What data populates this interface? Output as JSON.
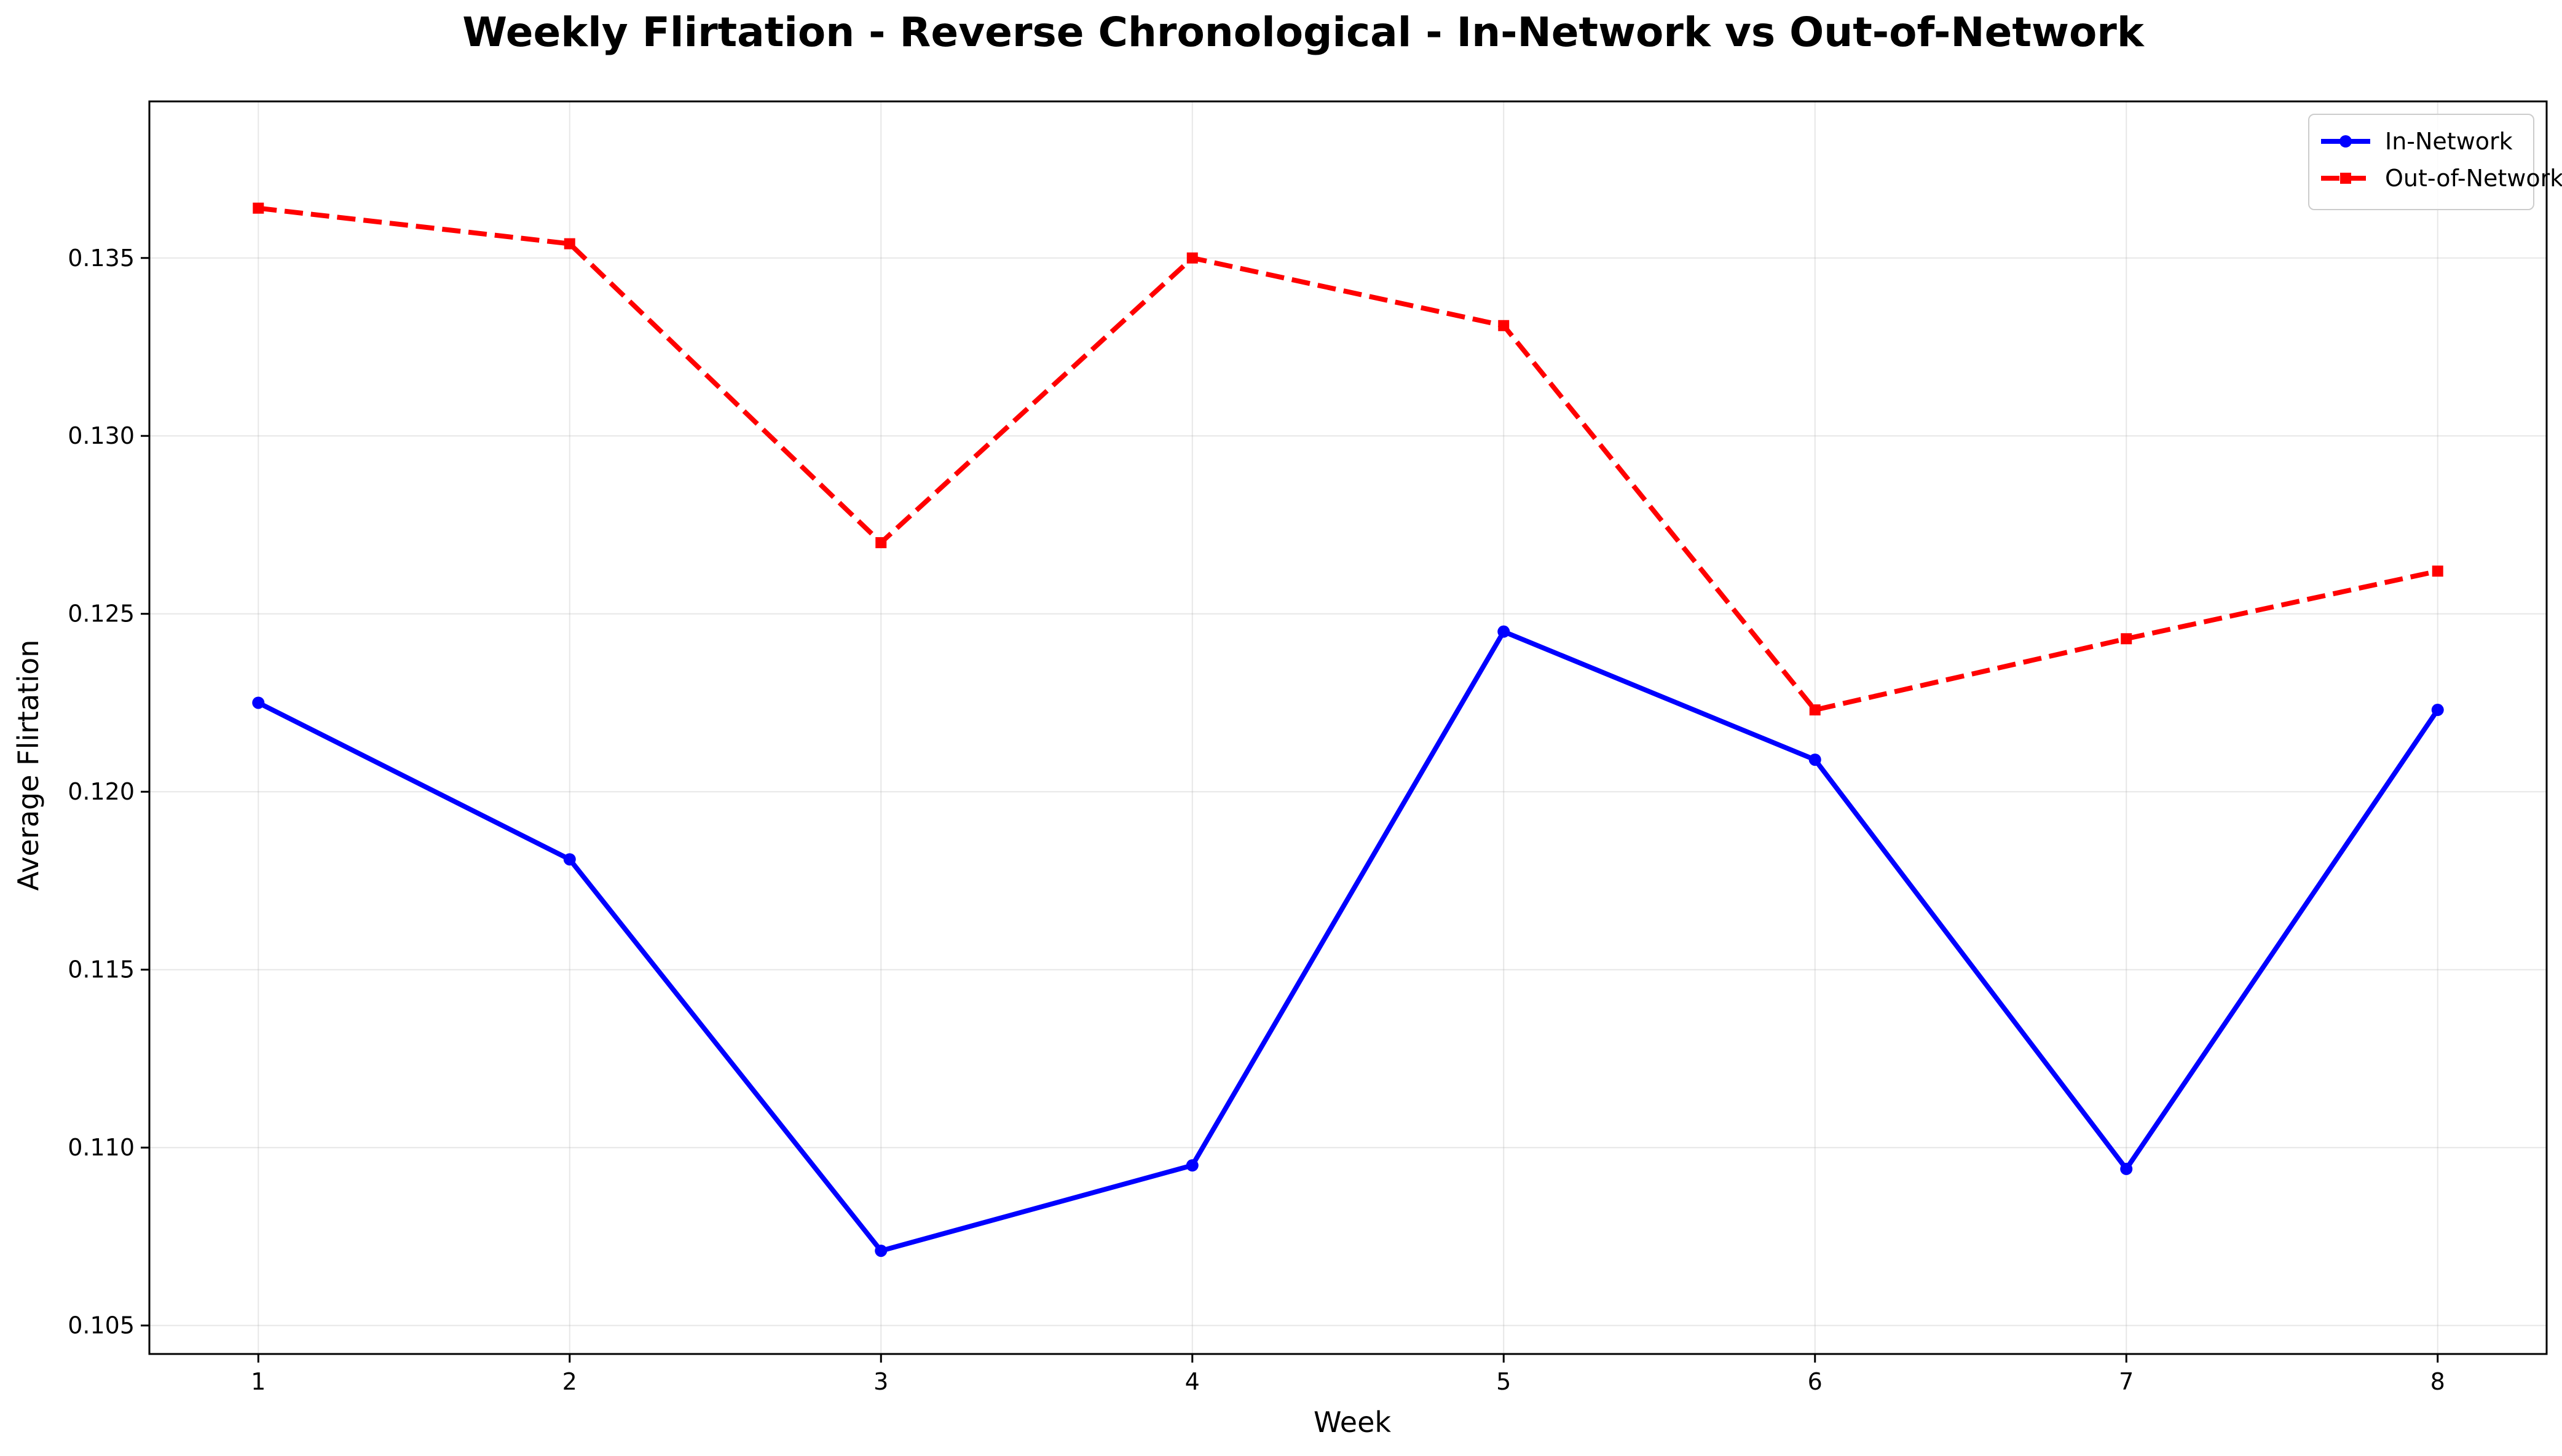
{
  "chart_data": {
    "type": "line",
    "title": "Weekly Flirtation - Reverse Chronological - In-Network vs Out-of-Network",
    "xlabel": "Week",
    "ylabel": "Average Flirtation",
    "x": [
      1,
      2,
      3,
      4,
      5,
      6,
      7,
      8
    ],
    "x_tick_labels": [
      "1",
      "2",
      "3",
      "4",
      "5",
      "6",
      "7",
      "8"
    ],
    "y_ticks": [
      0.105,
      0.11,
      0.115,
      0.12,
      0.125,
      0.13,
      0.135
    ],
    "y_tick_labels": [
      "0.105",
      "0.110",
      "0.115",
      "0.120",
      "0.125",
      "0.130",
      "0.135"
    ],
    "xlim": [
      0.65,
      8.35
    ],
    "ylim": [
      0.1042,
      0.1394
    ],
    "grid": true,
    "legend_position": "top-right",
    "series": [
      {
        "name": "In-Network",
        "color": "#0000ff",
        "line_style": "solid",
        "marker": "circle",
        "values": [
          0.1225,
          0.1181,
          0.1071,
          0.1095,
          0.1245,
          0.1209,
          0.1094,
          0.1223
        ]
      },
      {
        "name": "Out-of-Network",
        "color": "#ff0000",
        "line_style": "dashed",
        "marker": "square",
        "values": [
          0.1364,
          0.1354,
          0.127,
          0.135,
          0.1331,
          0.1223,
          0.1243,
          0.1262
        ]
      }
    ]
  }
}
